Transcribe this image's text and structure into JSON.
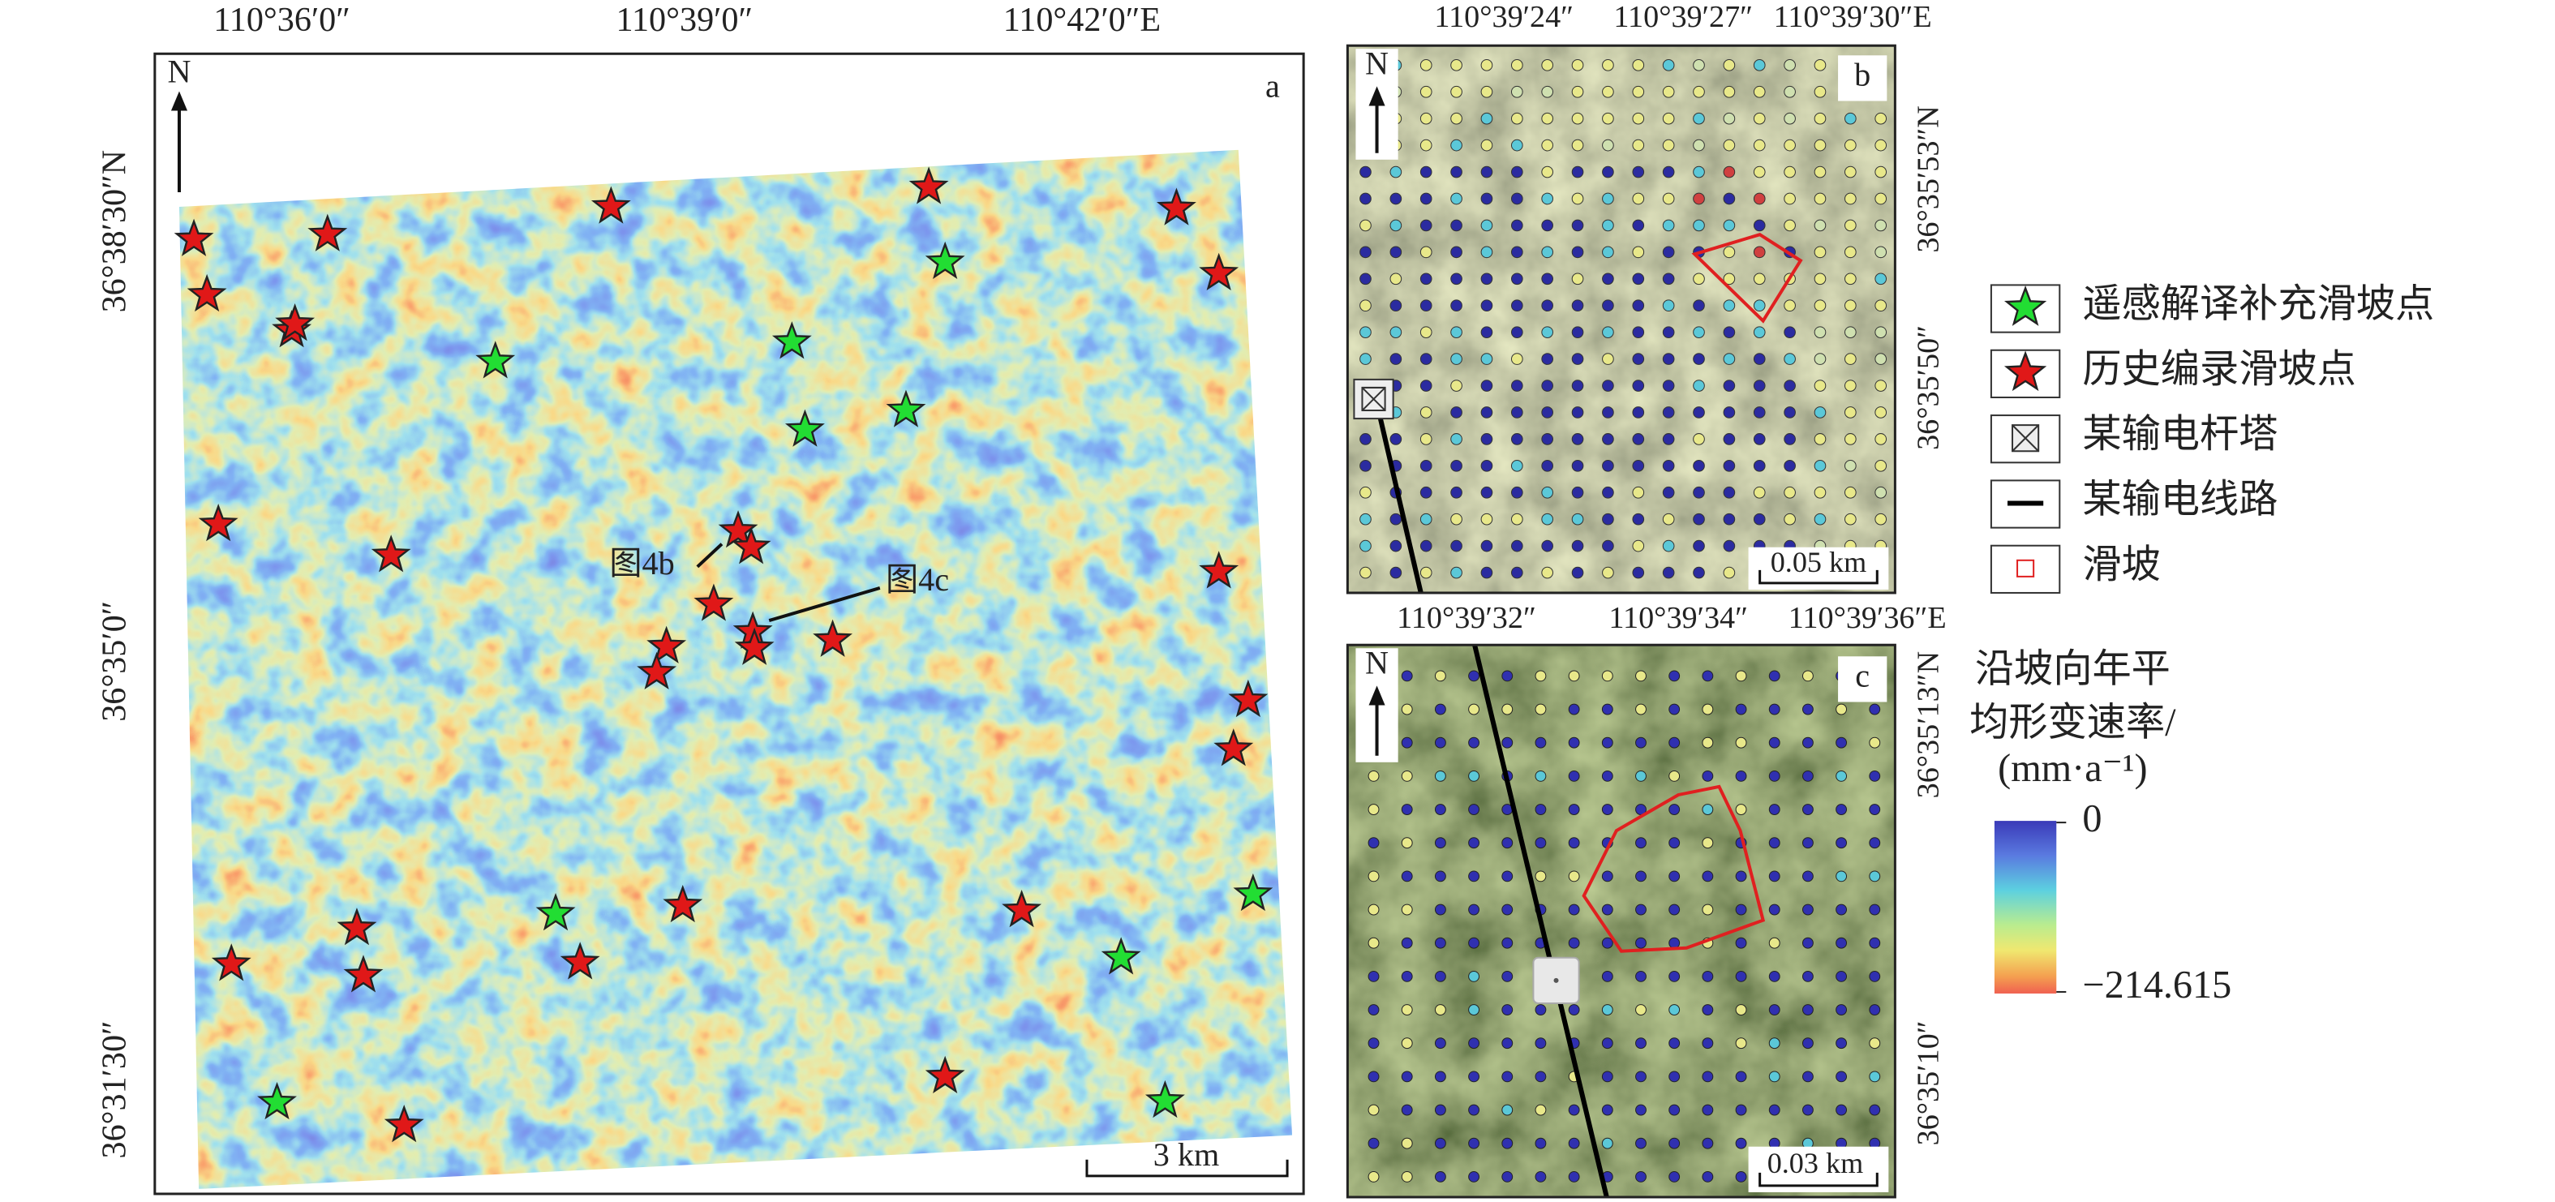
{
  "panel_a": {
    "label": "a",
    "north": "N",
    "lon_labels": [
      "110°36′0″",
      "110°39′0″",
      "110°42′0″E"
    ],
    "lat_labels": [
      "36°38′30″N",
      "36°35′0″",
      "36°31′30″"
    ],
    "annotations": [
      "图4b",
      "图4c"
    ],
    "scale_bar": "3 km"
  },
  "panel_b": {
    "label": "b",
    "north": "N",
    "lon_labels": [
      "110°39′24″",
      "110°39′27″",
      "110°39′30″E"
    ],
    "lat_labels": [
      "36°35′53″N",
      "36°35′50″"
    ],
    "scale_bar": "0.05 km"
  },
  "panel_c": {
    "label": "c",
    "north": "N",
    "lon_labels": [
      "110°39′32″",
      "110°39′34″",
      "110°39′36″E"
    ],
    "lat_labels": [
      "36°35′13″N",
      "36°35′10″"
    ],
    "scale_bar": "0.03 km"
  },
  "legend": {
    "items": [
      "遥感解译补充滑坡点",
      "历史编录滑坡点",
      "某输电杆塔",
      "某输电线路",
      "滑坡"
    ]
  },
  "colorbar": {
    "title": [
      "沿坡向年平",
      "均形变速率/",
      "(mm·a⁻¹)"
    ],
    "max_label": "0",
    "min_label": "−214.615"
  }
}
